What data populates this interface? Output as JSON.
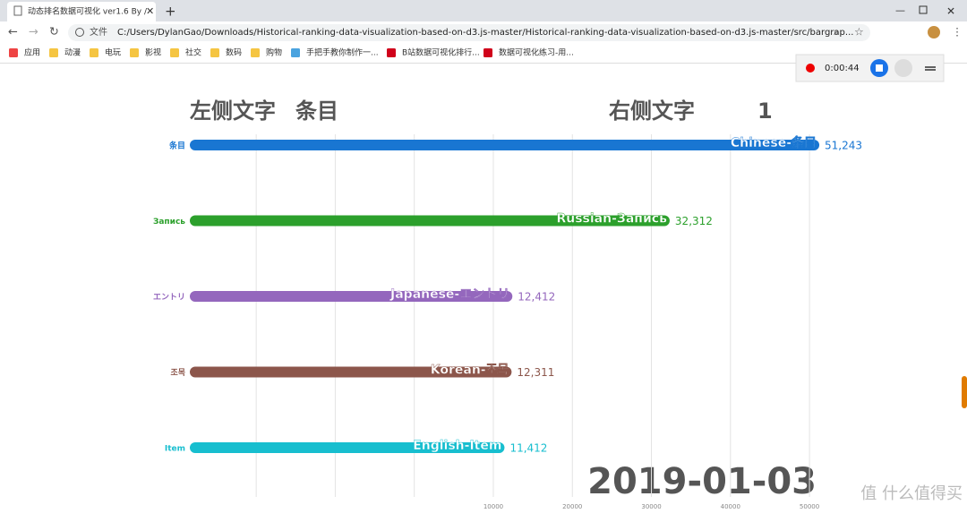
{
  "browser": {
    "tab_title": "动态排名数据可视化 ver1.6 By /",
    "url_prefix": "文件",
    "url": "C:/Users/DylanGao/Downloads/Historical-ranking-data-visualization-based-on-d3.js-master/Historical-ranking-data-visualization-based-on-d3.js-master/src/bargrap...",
    "bookmarks": [
      "应用",
      "动漫",
      "电玩",
      "影视",
      "社交",
      "数码",
      "购物",
      "手把手教你制作一...",
      "B站数据可视化排行...",
      "数据可视化练习-用..."
    ],
    "recorder_time": "0:00:44"
  },
  "chart_data": {
    "type": "bar",
    "orientation": "horizontal",
    "title_left": "左侧文字",
    "title_left_item": "条目",
    "title_right": "右侧文字",
    "title_right_value": "1",
    "date": "2019-01-03",
    "categories": [
      "条目",
      "Запись",
      "エントリ",
      "조목",
      "Item"
    ],
    "bar_labels": [
      "Chinese-条目",
      "Russian-Запись",
      "Japanese-エントリ",
      "Korean-조목",
      "English-Item"
    ],
    "values": [
      51243,
      32312,
      12412,
      12311,
      11412
    ],
    "value_labels": [
      "51,243",
      "32,312",
      "12,412",
      "12,311",
      "11,412"
    ],
    "colors": [
      "#1976d2",
      "#2ca02c",
      "#9467bd",
      "#8c564b",
      "#17becf"
    ],
    "xlim": [
      -28400,
      62000
    ],
    "xticks": [
      10000,
      20000,
      30000,
      40000,
      50000
    ],
    "minor_gridlines": [
      -20000,
      -10000,
      0
    ],
    "grid": true,
    "watermark": "值 什么值得买"
  }
}
